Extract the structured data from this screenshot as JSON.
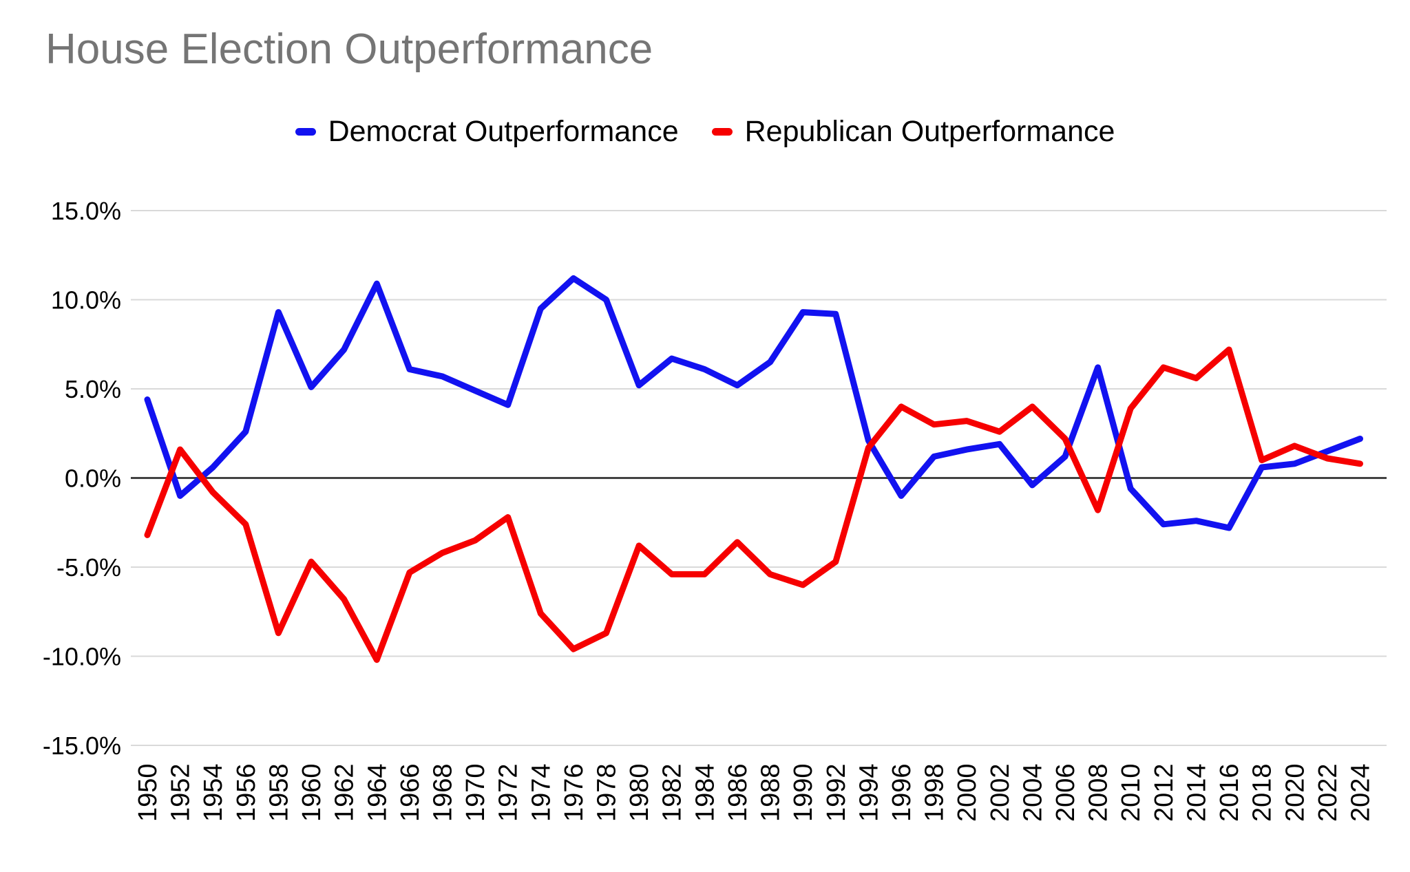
{
  "title": "House Election Outperformance",
  "title_color": "#757575",
  "legend": [
    {
      "label": "Democrat Outperformance",
      "color": "#1212f0"
    },
    {
      "label": "Republican Outperformance",
      "color": "#f60000"
    }
  ],
  "chart_data": {
    "type": "line",
    "title": "House Election Outperformance",
    "x": [
      1950,
      1952,
      1954,
      1956,
      1958,
      1960,
      1962,
      1964,
      1966,
      1968,
      1970,
      1972,
      1974,
      1976,
      1978,
      1980,
      1982,
      1984,
      1986,
      1988,
      1990,
      1992,
      1994,
      1996,
      1998,
      2000,
      2002,
      2004,
      2006,
      2008,
      2010,
      2012,
      2014,
      2016,
      2018,
      2020,
      2022,
      2024
    ],
    "series": [
      {
        "name": "Democrat Outperformance",
        "color": "#1212f0",
        "values": [
          4.4,
          -1.0,
          0.6,
          2.6,
          9.3,
          5.1,
          7.2,
          10.9,
          6.1,
          5.7,
          4.9,
          4.1,
          9.5,
          11.2,
          10.0,
          5.2,
          6.7,
          6.1,
          5.2,
          6.5,
          9.3,
          9.2,
          2.1,
          -1.0,
          1.2,
          1.6,
          1.9,
          -0.4,
          1.2,
          6.2,
          -0.6,
          -2.6,
          -2.4,
          -2.8,
          0.6,
          0.8,
          1.5,
          2.2
        ]
      },
      {
        "name": "Republican Outperformance",
        "color": "#f60000",
        "values": [
          -3.2,
          1.6,
          -0.8,
          -2.6,
          -8.7,
          -4.7,
          -6.8,
          -10.2,
          -5.3,
          -4.2,
          -3.5,
          -2.2,
          -7.6,
          -9.6,
          -8.7,
          -3.8,
          -5.4,
          -5.4,
          -3.6,
          -5.4,
          -6.0,
          -4.7,
          1.7,
          4.0,
          3.0,
          3.2,
          2.6,
          4.0,
          2.2,
          -1.8,
          3.9,
          6.2,
          5.6,
          7.2,
          1.0,
          1.8,
          1.1,
          0.8
        ]
      }
    ],
    "ylim": [
      -15,
      15
    ],
    "y_ticks": [
      {
        "value": 15,
        "label": "15.0%"
      },
      {
        "value": 10,
        "label": "10.0%"
      },
      {
        "value": 5,
        "label": "5.0%"
      },
      {
        "value": 0,
        "label": "0.0%"
      },
      {
        "value": -5,
        "label": "-5.0%"
      },
      {
        "value": -10,
        "label": "-10.0%"
      },
      {
        "value": -15,
        "label": "-15.0%"
      }
    ],
    "grid": "horizontal",
    "grid_color": "#d9d9d9",
    "zero_line_color": "#424242",
    "legend_position": "top",
    "x_tick_rotation": 90
  }
}
